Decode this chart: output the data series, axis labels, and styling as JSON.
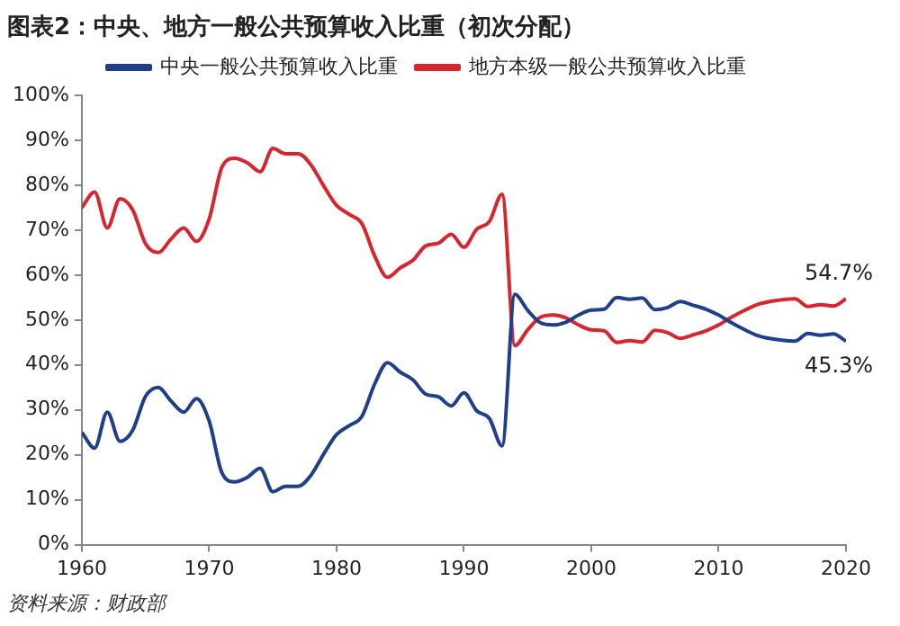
{
  "chart_data": {
    "type": "line",
    "title": "图表2：中央、地方一般公共预算收入比重（初次分配）",
    "x": [
      1960,
      1961,
      1962,
      1963,
      1964,
      1965,
      1966,
      1967,
      1968,
      1969,
      1970,
      1971,
      1972,
      1973,
      1974,
      1975,
      1976,
      1977,
      1978,
      1979,
      1980,
      1981,
      1982,
      1983,
      1984,
      1985,
      1986,
      1987,
      1988,
      1989,
      1990,
      1991,
      1992,
      1993,
      1994,
      1995,
      1996,
      1997,
      1998,
      1999,
      2000,
      2001,
      2002,
      2003,
      2004,
      2005,
      2006,
      2007,
      2008,
      2009,
      2010,
      2011,
      2012,
      2013,
      2014,
      2015,
      2016,
      2017,
      2018,
      2019,
      2020
    ],
    "series": [
      {
        "name": "中央一般公共预算收入比重",
        "color": "#1f3f8a",
        "values": [
          25,
          21.5,
          29.5,
          23,
          25.5,
          33,
          35,
          32,
          29.5,
          32.5,
          27.5,
          16,
          14,
          15,
          17,
          11.8,
          13,
          13,
          15.5,
          20.2,
          24.5,
          26.5,
          28.6,
          35.8,
          40.5,
          38.4,
          36.7,
          33.5,
          32.9,
          30.9,
          33.8,
          29.8,
          28.1,
          22,
          55.7,
          52.2,
          49.4,
          48.9,
          49.5,
          51.1,
          52.2,
          52.4,
          55,
          54.6,
          54.9,
          52.3,
          52.8,
          54.1,
          53.3,
          52.4,
          51.1,
          49.4,
          47.9,
          46.6,
          45.9,
          45.5,
          45.3,
          47,
          46.6,
          46.9,
          45.3
        ]
      },
      {
        "name": "地方本级一般公共预算收入比重",
        "color": "#d7262e",
        "values": [
          75,
          78.5,
          70.5,
          77,
          74.5,
          67,
          65,
          68,
          70.5,
          67.5,
          72.5,
          84,
          86,
          85,
          83,
          88.2,
          87,
          87,
          84.5,
          79.8,
          75.5,
          73.5,
          71.4,
          64.2,
          59.5,
          61.6,
          63.3,
          66.5,
          67.1,
          69.1,
          66.2,
          70.2,
          71.9,
          78,
          44.3,
          47.8,
          50.6,
          51.1,
          50.5,
          48.9,
          47.8,
          47.6,
          45,
          45.4,
          45.1,
          47.7,
          47.2,
          45.9,
          46.7,
          47.6,
          48.9,
          50.6,
          52.1,
          53.4,
          54.1,
          54.5,
          54.7,
          53,
          53.4,
          53.1,
          54.7
        ]
      }
    ],
    "xlim": [
      1960,
      2020
    ],
    "xticks": [
      1960,
      1970,
      1980,
      1990,
      2000,
      2010,
      2020
    ],
    "ylim": [
      0,
      100
    ],
    "yticks": [
      {
        "value": 0,
        "label": "0%"
      },
      {
        "value": 10,
        "label": "10%"
      },
      {
        "value": 20,
        "label": "20%"
      },
      {
        "value": 30,
        "label": "30%"
      },
      {
        "value": 40,
        "label": "40%"
      },
      {
        "value": 50,
        "label": "50%"
      },
      {
        "value": 60,
        "label": "60%"
      },
      {
        "value": 70,
        "label": "70%"
      },
      {
        "value": 80,
        "label": "80%"
      },
      {
        "value": 90,
        "label": "90%"
      },
      {
        "value": 100,
        "label": "100%"
      }
    ],
    "legend": "top",
    "grid": false,
    "marker": "none",
    "line_style": "solid",
    "annotations": [
      {
        "text": "54.7%",
        "x": 2020,
        "y": 54.7
      },
      {
        "text": "45.3%",
        "x": 2020,
        "y": 45.3
      },
      "资料来源：财政部"
    ]
  }
}
